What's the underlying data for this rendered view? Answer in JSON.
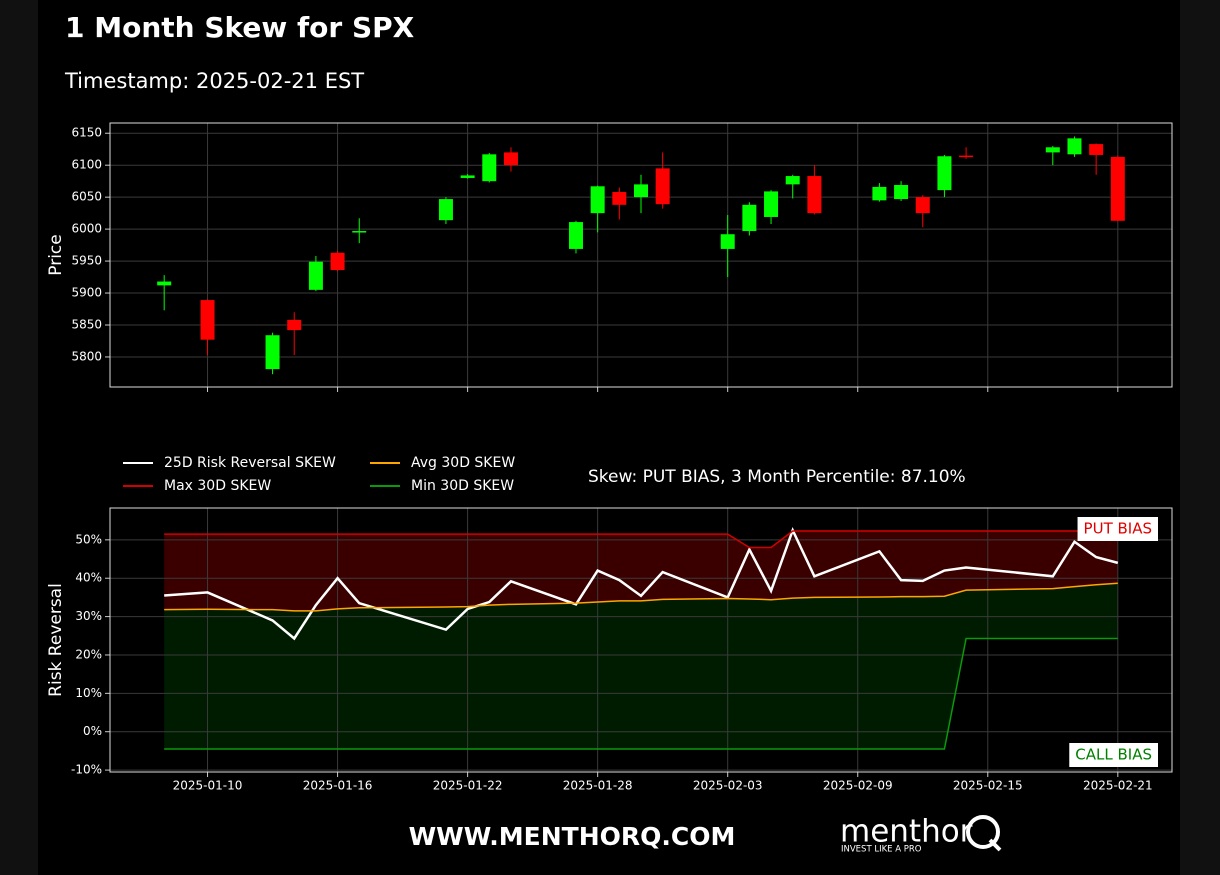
{
  "header": {
    "title": "1 Month Skew for SPX",
    "subtitle": "Timestamp: 2025-02-21 EST"
  },
  "chart_data": [
    {
      "type": "candlestick",
      "ylabel": "Price",
      "x": [
        "2025-01-08",
        "2025-01-10",
        "2025-01-13",
        "2025-01-14",
        "2025-01-15",
        "2025-01-16",
        "2025-01-17",
        "2025-01-21",
        "2025-01-22",
        "2025-01-23",
        "2025-01-24",
        "2025-01-27",
        "2025-01-28",
        "2025-01-29",
        "2025-01-30",
        "2025-01-31",
        "2025-02-03",
        "2025-02-04",
        "2025-02-05",
        "2025-02-06",
        "2025-02-07",
        "2025-02-10",
        "2025-02-11",
        "2025-02-12",
        "2025-02-13",
        "2025-02-14",
        "2025-02-18",
        "2025-02-19",
        "2025-02-20",
        "2025-02-21"
      ],
      "open": [
        5912,
        5889,
        5781,
        5858,
        5905,
        5963,
        5995,
        6014,
        6080,
        6075,
        6120,
        5969,
        6025,
        6058,
        6050,
        6095,
        5969,
        5997,
        6019,
        6070,
        6083,
        6045,
        6047,
        6050,
        6061,
        6115,
        6120,
        6117,
        6133,
        6113
      ],
      "high": [
        5928,
        5890,
        5838,
        5870,
        5958,
        5966,
        6017,
        6050,
        6086,
        6119,
        6128,
        6013,
        6068,
        6065,
        6085,
        6120,
        6022,
        6042,
        6061,
        6085,
        6100,
        6072,
        6075,
        6053,
        6116,
        6128,
        6130,
        6145,
        6134,
        6115
      ],
      "low": [
        5873,
        5803,
        5773,
        5803,
        5903,
        5934,
        5978,
        6008,
        6079,
        6073,
        6090,
        5962,
        5995,
        6015,
        6025,
        6032,
        5925,
        5990,
        6008,
        6048,
        6023,
        6043,
        6044,
        6003,
        6050,
        6110,
        6100,
        6113,
        6085,
        6012
      ],
      "close": [
        5918,
        5827,
        5834,
        5842,
        5949,
        5936,
        5997,
        6047,
        6084,
        6117,
        6100,
        6011,
        6067,
        6038,
        6070,
        6039,
        5992,
        6038,
        6059,
        6083,
        6025,
        6066,
        6069,
        6025,
        6114,
        6114,
        6128,
        6142,
        6116,
        6013
      ],
      "up_color": "#00ff00",
      "down_color": "#ff0000",
      "xlim": [
        "2025-01-05T12:00Z",
        "2025-02-23T12:00Z"
      ],
      "xticks": [
        "2025-01-10",
        "2025-01-16",
        "2025-01-22",
        "2025-01-28",
        "2025-02-03",
        "2025-02-09",
        "2025-02-15",
        "2025-02-21"
      ],
      "ylim": [
        5753,
        6166
      ],
      "yticks": [
        5800,
        5850,
        5900,
        5950,
        6000,
        6050,
        6100,
        6150
      ],
      "grid": true
    },
    {
      "type": "line",
      "ylabel": "Risk Reversal",
      "x": [
        "2025-01-08",
        "2025-01-10",
        "2025-01-13",
        "2025-01-14",
        "2025-01-15",
        "2025-01-16",
        "2025-01-17",
        "2025-01-21",
        "2025-01-22",
        "2025-01-23",
        "2025-01-24",
        "2025-01-27",
        "2025-01-28",
        "2025-01-29",
        "2025-01-30",
        "2025-01-31",
        "2025-02-03",
        "2025-02-04",
        "2025-02-05",
        "2025-02-06",
        "2025-02-07",
        "2025-02-10",
        "2025-02-11",
        "2025-02-12",
        "2025-02-13",
        "2025-02-14",
        "2025-02-18",
        "2025-02-19",
        "2025-02-20",
        "2025-02-21"
      ],
      "series": [
        {
          "name": "25D Risk Reversal SKEW",
          "color": "#ffffff",
          "width": 2.5,
          "values": [
            35.5,
            36.3,
            29,
            24.3,
            33,
            40,
            33.5,
            26.6,
            32,
            33.8,
            39.2,
            33.2,
            42,
            39.5,
            35.4,
            41.6,
            35,
            47.5,
            36.7,
            52.5,
            40.5,
            47,
            39.5,
            39.3,
            42,
            42.8,
            40.5,
            49.5,
            45.5,
            44
          ]
        },
        {
          "name": "Max 30D SKEW",
          "color": "#d40000",
          "width": 1.5,
          "values": [
            51.5,
            51.5,
            51.5,
            51.5,
            51.5,
            51.5,
            51.5,
            51.5,
            51.5,
            51.5,
            51.5,
            51.5,
            51.5,
            51.5,
            51.5,
            51.5,
            51.5,
            48,
            48,
            52.3,
            52.3,
            52.3,
            52.3,
            52.3,
            52.3,
            52.3,
            52.3,
            52.3,
            52.3,
            52.3
          ]
        },
        {
          "name": "Avg 30D SKEW",
          "color": "#ffa500",
          "width": 1.5,
          "values": [
            31.8,
            31.9,
            31.8,
            31.5,
            31.5,
            32,
            32.3,
            32.5,
            32.6,
            33,
            33.2,
            33.5,
            33.8,
            34.1,
            34.1,
            34.5,
            34.7,
            34.6,
            34.4,
            34.8,
            35,
            35.1,
            35.2,
            35.2,
            35.3,
            36.9,
            37.3,
            37.8,
            38.3,
            38.7
          ]
        },
        {
          "name": "Min 30D SKEW",
          "color": "#0a9a0a",
          "width": 1.5,
          "values": [
            -4.5,
            -4.5,
            -4.5,
            -4.5,
            -4.5,
            -4.5,
            -4.5,
            -4.5,
            -4.5,
            -4.5,
            -4.5,
            -4.5,
            -4.5,
            -4.5,
            -4.5,
            -4.5,
            -4.5,
            -4.5,
            -4.5,
            -4.5,
            -4.5,
            -4.5,
            -4.5,
            -4.5,
            -4.5,
            24.3,
            24.3,
            24.3,
            24.3,
            24.3
          ]
        }
      ],
      "fills": [
        {
          "from": "Avg 30D SKEW",
          "to": "Max 30D SKEW",
          "color": "#3a0000"
        },
        {
          "from": "Min 30D SKEW",
          "to": "Avg 30D SKEW",
          "color": "#001c00"
        }
      ],
      "xlim": [
        "2025-01-05T12:00Z",
        "2025-02-23T12:00Z"
      ],
      "xticks": [
        "2025-01-10",
        "2025-01-16",
        "2025-01-22",
        "2025-01-28",
        "2025-02-03",
        "2025-02-09",
        "2025-02-15",
        "2025-02-21"
      ],
      "ylim": [
        -10.5,
        58.3
      ],
      "yticks": [
        {
          "value": -10,
          "label": "-10%"
        },
        {
          "value": 0,
          "label": "0%"
        },
        {
          "value": 10,
          "label": "10%"
        },
        {
          "value": 20,
          "label": "20%"
        },
        {
          "value": 30,
          "label": "30%"
        },
        {
          "value": 40,
          "label": "40%"
        },
        {
          "value": 50,
          "label": "50%"
        }
      ],
      "grid": true,
      "legend": "top",
      "note": "Skew: PUT BIAS, 3 Month Percentile: 87.10%",
      "annotations": [
        {
          "text": "PUT BIAS",
          "color": "#e00000",
          "corner": "top-right"
        },
        {
          "text": "CALL BIAS",
          "color": "#008000",
          "corner": "bottom-right"
        }
      ]
    }
  ],
  "footer": {
    "website": "WWW.MENTHORQ.COM",
    "brand": "menthor",
    "tagline": "INVEST LIKE A PRO"
  }
}
